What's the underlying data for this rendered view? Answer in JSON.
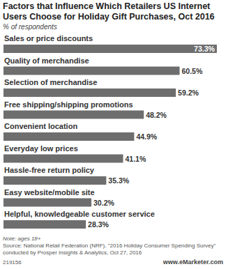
{
  "chart_data": {
    "type": "bar",
    "orientation": "horizontal",
    "title": "Factors that Influence Which Retailers US Internet Users Choose for Holiday Gift Purchases, Oct 2016",
    "subtitle": "% of respondents",
    "categories": [
      "Sales or price discounts",
      "Quality of merchandise",
      "Selection of merchandise",
      "Free shipping/shipping promotions",
      "Convenient location",
      "Everyday low prices",
      "Hassle-free return policy",
      "Easy website/mobile site",
      "Helpful, knowledgeable customer service"
    ],
    "values": [
      73.3,
      60.5,
      59.2,
      48.2,
      44.9,
      41.1,
      35.3,
      30.2,
      28.3
    ],
    "value_labels": [
      "73.3%",
      "60.5%",
      "59.2%",
      "48.2%",
      "44.9%",
      "41.1%",
      "35.3%",
      "30.2%",
      "28.3%"
    ],
    "data_labels": true,
    "tick_labels": false,
    "grid": false,
    "color": "#6e6e6e",
    "xlim": [
      0,
      75
    ],
    "note": "Note: ages 18+",
    "source": "Source: National Retail Federation (NRF), \"2016 Holiday Consumer Spending Survey\" conducted by Prosper Insights & Analytics, Oct 27, 2016",
    "chart_id": "219156",
    "brand": "www.eMarketer.com"
  }
}
